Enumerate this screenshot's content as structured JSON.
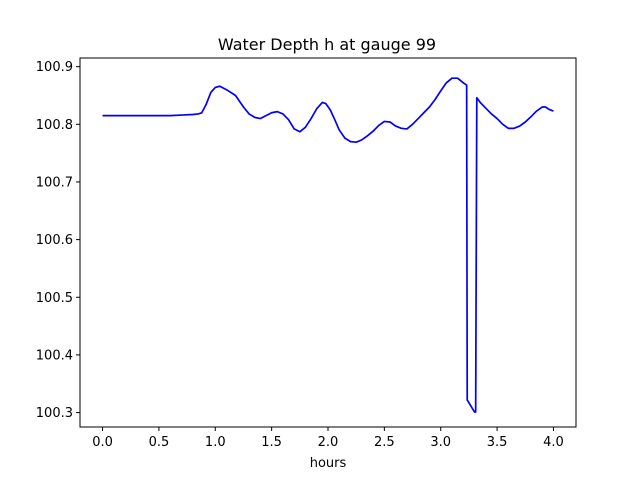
{
  "chart_data": {
    "type": "line",
    "title": "Water Depth h at gauge 99",
    "xlabel": "hours",
    "ylabel": "",
    "xlim": [
      -0.2,
      4.2
    ],
    "ylim": [
      100.275,
      100.915
    ],
    "xticks": [
      0.0,
      0.5,
      1.0,
      1.5,
      2.0,
      2.5,
      3.0,
      3.5,
      4.0
    ],
    "xtick_labels": [
      "0.0",
      "0.5",
      "1.0",
      "1.5",
      "2.0",
      "2.5",
      "3.0",
      "3.5",
      "4.0"
    ],
    "yticks": [
      100.3,
      100.4,
      100.5,
      100.6,
      100.7,
      100.8,
      100.9
    ],
    "ytick_labels": [
      "100.3",
      "100.4",
      "100.5",
      "100.6",
      "100.7",
      "100.8",
      "100.9"
    ],
    "grid": false,
    "series": [
      {
        "color": "#0000ff",
        "x": [
          0.0,
          0.2,
          0.4,
          0.6,
          0.7,
          0.8,
          0.85,
          0.88,
          0.92,
          0.96,
          1.0,
          1.04,
          1.1,
          1.18,
          1.25,
          1.3,
          1.35,
          1.4,
          1.45,
          1.5,
          1.55,
          1.6,
          1.65,
          1.7,
          1.75,
          1.8,
          1.85,
          1.9,
          1.95,
          1.98,
          2.02,
          2.06,
          2.1,
          2.15,
          2.2,
          2.25,
          2.3,
          2.35,
          2.4,
          2.45,
          2.5,
          2.55,
          2.6,
          2.65,
          2.7,
          2.75,
          2.8,
          2.85,
          2.9,
          2.95,
          3.0,
          3.05,
          3.1,
          3.15,
          3.2,
          3.23,
          3.235,
          3.3,
          3.31,
          3.32,
          3.35,
          3.4,
          3.45,
          3.5,
          3.55,
          3.6,
          3.65,
          3.7,
          3.75,
          3.8,
          3.85,
          3.9,
          3.93,
          3.96,
          4.0
        ],
        "y": [
          100.815,
          100.815,
          100.815,
          100.815,
          100.816,
          100.817,
          100.818,
          100.82,
          100.835,
          100.855,
          100.864,
          100.866,
          100.86,
          100.85,
          100.83,
          100.818,
          100.812,
          100.81,
          100.815,
          100.82,
          100.822,
          100.818,
          100.808,
          100.792,
          100.787,
          100.795,
          100.81,
          100.827,
          100.838,
          100.836,
          100.825,
          100.808,
          100.79,
          100.776,
          100.77,
          100.769,
          100.773,
          100.78,
          100.788,
          100.798,
          100.805,
          100.804,
          100.797,
          100.793,
          100.792,
          100.8,
          100.81,
          100.82,
          100.83,
          100.843,
          100.858,
          100.872,
          100.88,
          100.88,
          100.872,
          100.868,
          100.322,
          100.301,
          100.301,
          100.846,
          100.838,
          100.828,
          100.818,
          100.81,
          100.8,
          100.793,
          100.793,
          100.797,
          100.804,
          100.813,
          100.823,
          100.83,
          100.83,
          100.826,
          100.823
        ]
      }
    ]
  }
}
